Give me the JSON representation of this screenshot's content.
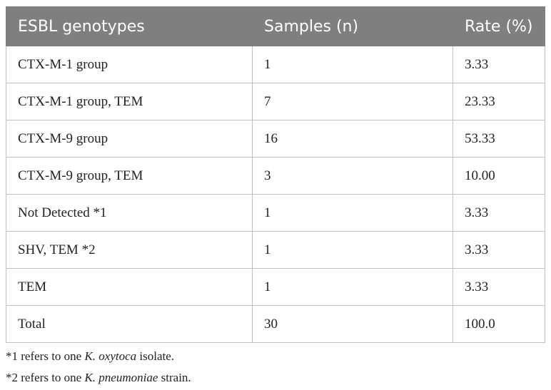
{
  "table": {
    "headers": [
      "ESBL genotypes",
      "Samples (n)",
      "Rate (%)"
    ],
    "rows": [
      [
        "CTX-M-1 group",
        "1",
        "3.33"
      ],
      [
        "CTX-M-1 group, TEM",
        "7",
        "23.33"
      ],
      [
        "CTX-M-9 group",
        "16",
        "53.33"
      ],
      [
        "CTX-M-9 group, TEM",
        "3",
        "10.00"
      ],
      [
        "Not Detected *1",
        "1",
        "3.33"
      ],
      [
        "SHV, TEM *2",
        "1",
        "3.33"
      ],
      [
        "TEM",
        "1",
        "3.33"
      ],
      [
        "Total",
        "30",
        "100.0"
      ]
    ]
  },
  "footnotes": [
    {
      "prefix": "*1 refers to one ",
      "organism": "K. oxytoca",
      "suffix": " isolate."
    },
    {
      "prefix": "*2 refers to one ",
      "organism": "K. pneumoniae",
      "suffix": " strain."
    }
  ]
}
